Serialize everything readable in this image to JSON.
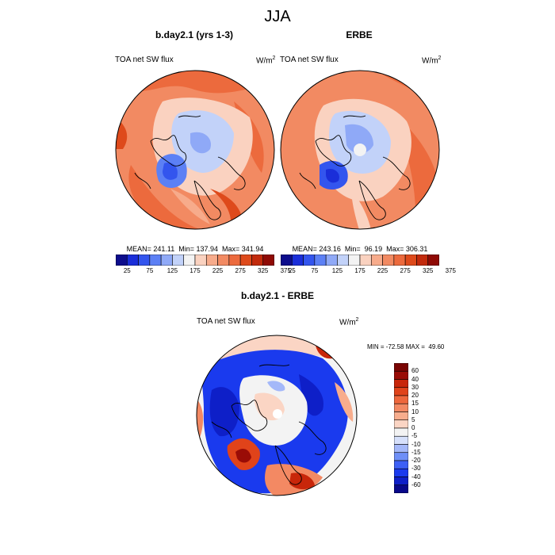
{
  "page_title": "JJA",
  "panels": [
    {
      "title": "b.day2.1 (yrs 1-3)",
      "variable": "TOA net SW flux",
      "units": "W/m",
      "units_sup": "2",
      "stats": "MEAN= 241.11  Min= 137.94  Max= 341.94"
    },
    {
      "title": "ERBE",
      "variable": "TOA net SW flux",
      "units": "W/m",
      "units_sup": "2",
      "stats": "MEAN= 243.16  Min=  96.19  Max= 306.31"
    },
    {
      "title": "b.day2.1 - ERBE",
      "variable": "TOA net SW flux",
      "units": "W/m",
      "units_sup": "2",
      "stats": "MIN = -72.58 MAX =  49.60"
    }
  ],
  "colors": {
    "abs_scale": [
      "#0d0d8c",
      "#1a2ed9",
      "#3355ee",
      "#5c80f5",
      "#8fa9f7",
      "#c2d2f9",
      "#f3f3f3",
      "#fad2c0",
      "#f7ab8b",
      "#f28a62",
      "#ec6a3d",
      "#de4a1b",
      "#c22a0c",
      "#8f0a05"
    ],
    "diff_scale": [
      "#08088a",
      "#0e1fc8",
      "#1a3aee",
      "#3d60f5",
      "#6e8ff7",
      "#a4b8f9",
      "#d6e0fb",
      "#f3f3f3",
      "#fbd5c4",
      "#f8ad8d",
      "#f38963",
      "#ee673c",
      "#e0431a",
      "#c8260a",
      "#9a0c06",
      "#7a0503"
    ]
  },
  "chart_data": [
    {
      "type": "heatmap",
      "title": "b.day2.1 (yrs 1-3)",
      "projection": "polar stereographic (north)",
      "colorbar": {
        "orientation": "horizontal",
        "ticks": [
          "25",
          "75",
          "125",
          "175",
          "225",
          "275",
          "325",
          "375"
        ]
      },
      "mean": 241.11,
      "min": 137.94,
      "max": 341.94
    },
    {
      "type": "heatmap",
      "title": "ERBE",
      "projection": "polar stereographic (north)",
      "colorbar": {
        "orientation": "horizontal",
        "ticks": [
          "25",
          "75",
          "125",
          "175",
          "225",
          "275",
          "325",
          "375"
        ]
      },
      "mean": 243.16,
      "min": 96.19,
      "max": 306.31
    },
    {
      "type": "heatmap",
      "title": "b.day2.1 - ERBE",
      "projection": "polar stereographic (north)",
      "colorbar": {
        "orientation": "vertical",
        "ticks": [
          "60",
          "40",
          "30",
          "20",
          "15",
          "10",
          "5",
          "0",
          "-5",
          "-10",
          "-15",
          "-20",
          "-30",
          "-40",
          "-60"
        ]
      },
      "min": -72.58,
      "max": 49.6
    }
  ]
}
